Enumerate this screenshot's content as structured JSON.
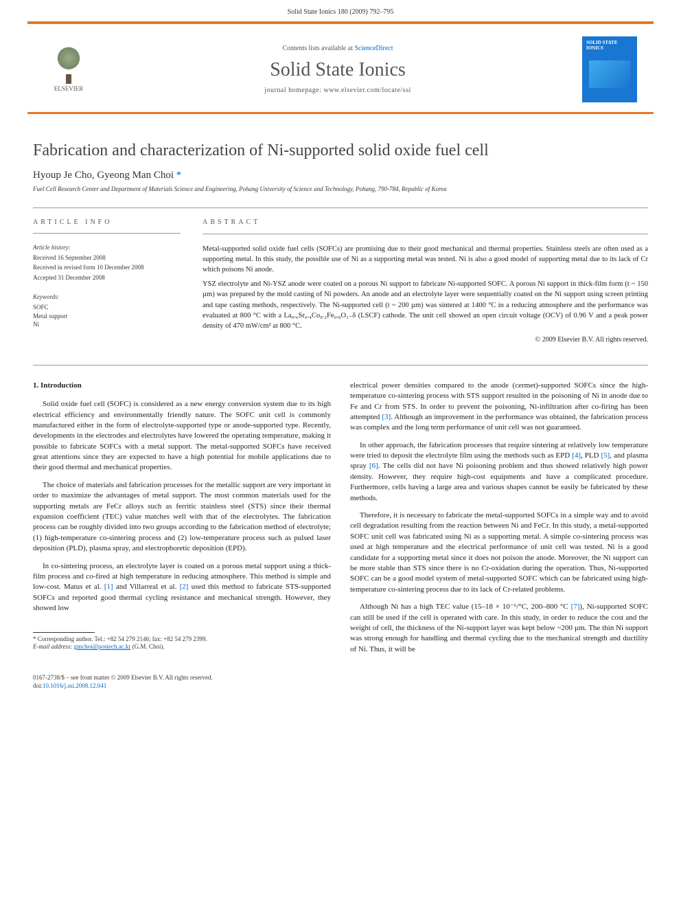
{
  "header": {
    "running": "Solid State Ionics 180 (2009) 792–795"
  },
  "banner": {
    "publisher": "ELSEVIER",
    "contents": "Contents lists available at ",
    "contents_link": "ScienceDirect",
    "journal": "Solid State Ionics",
    "homepage_label": "journal homepage: ",
    "homepage_url": "www.elsevier.com/locate/ssi",
    "cover_title": "SOLID STATE IONICS"
  },
  "article": {
    "title": "Fabrication and characterization of Ni-supported solid oxide fuel cell",
    "authors": "Hyoup Je Cho, Gyeong Man Choi ",
    "corr_mark": "*",
    "affiliation": "Fuel Cell Research Center and Department of Materials Science and Engineering, Pohang University of Science and Technology, Pohang, 790-784, Republic of Korea"
  },
  "info": {
    "heading": "ARTICLE INFO",
    "history_label": "Article history:",
    "received": "Received 16 September 2008",
    "revised": "Received in revised form 10 December 2008",
    "accepted": "Accepted 31 December 2008",
    "keywords_label": "Keywords:",
    "kw1": "SOFC",
    "kw2": "Metal support",
    "kw3": "Ni"
  },
  "abstract": {
    "heading": "ABSTRACT",
    "p1": "Metal-supported solid oxide fuel cells (SOFCs) are promising due to their good mechanical and thermal properties. Stainless steels are often used as a supporting metal. In this study, the possible use of Ni as a supporting metal was tested. Ni is also a good model of supporting metal due to its lack of Cr which poisons Ni anode.",
    "p2": "YSZ electrolyte and Ni-YSZ anode were coated on a porous Ni support to fabricate Ni-supported SOFC. A porous Ni support in thick-film form (t ~ 150 µm) was prepared by the mold casting of Ni powders. An anode and an electrolyte layer were sequentially coated on the Ni support using screen printing and tape casting methods, respectively. The Ni-supported cell (t ~ 200 µm) was sintered at 1400 °C in a reducing atmosphere and the performance was evaluated at 800 °C with a La₀.₆Sr₀.₄Co₀.₂Fe₀.₈O₃₋δ (LSCF) cathode. The unit cell showed an open circuit voltage (OCV) of 0.96 V and a peak power density of 470 mW/cm² at 800 °C.",
    "copyright": "© 2009 Elsevier B.V. All rights reserved."
  },
  "intro": {
    "heading": "1. Introduction",
    "left_p1": "Solid oxide fuel cell (SOFC) is considered as a new energy conversion system due to its high electrical efficiency and environmentally friendly nature. The SOFC unit cell is commonly manufactured either in the form of electrolyte-supported type or anode-supported type. Recently, developments in the electrodes and electrolytes have lowered the operating temperature, making it possible to fabricate SOFCs with a metal support. The metal-supported SOFCs have received great attentions since they are expected to have a high potential for mobile applications due to their good thermal and mechanical properties.",
    "left_p2": "The choice of materials and fabrication processes for the metallic support are very important in order to maximize the advantages of metal support. The most common materials used for the supporting metals are FeCr alloys such as ferritic stainless steel (STS) since their thermal expansion coefficient (TEC) value matches well with that of the electrolytes. The fabrication process can be roughly divided into two groups according to the fabrication method of electrolyte; (1) high-temperature co-sintering process and (2) low-temperature process such as pulsed laser deposition (PLD), plasma spray, and electrophoretic deposition (EPD).",
    "left_p3_a": "In co-sintering process, an electrolyte layer is coated on a porous metal support using a thick-film process and co-fired at high temperature in reducing atmosphere. This method is simple and low-cost. Matus et al. ",
    "left_p3_ref1": "[1]",
    "left_p3_b": " and Villarreal et al. ",
    "left_p3_ref2": "[2]",
    "left_p3_c": " used this method to fabricate STS-supported SOFCs and reported good thermal cycling resistance and mechanical strength. However, they showed low",
    "right_p1_a": "electrical power densities compared to the anode (cermet)-supported SOFCs since the high-temperature co-sintering process with STS support resulted in the poisoning of Ni in anode due to Fe and Cr from STS. In order to prevent the poisoning, Ni-infiltration after co-firing has been attempted ",
    "right_p1_ref3": "[3]",
    "right_p1_b": ". Although an improvement in the performance was obtained, the fabrication process was complex and the long term performance of unit cell was not guaranteed.",
    "right_p2_a": "In other approach, the fabrication processes that require sintering at relatively low temperature were tried to deposit the electrolyte film using the methods such as EPD ",
    "right_p2_ref4": "[4]",
    "right_p2_b": ", PLD ",
    "right_p2_ref5": "[5]",
    "right_p2_c": ", and plasma spray ",
    "right_p2_ref6": "[6]",
    "right_p2_d": ". The cells did not have Ni poisoning problem and thus showed relatively high power density. However, they require high-cost equipments and have a complicated procedure. Furthermore, cells having a large area and various shapes cannot be easily be fabricated by these methods.",
    "right_p3": "Therefore, it is necessary to fabricate the metal-supported SOFCs in a simple way and to avoid cell degradation resulting from the reaction between Ni and FeCr. In this study, a metal-supported SOFC unit cell was fabricated using Ni as a supporting metal. A simple co-sintering process was used at high temperature and the electrical performance of unit cell was tested. Ni is a good candidate for a supporting metal since it does not poison the anode. Moreover, the Ni support can be more stable than STS since there is no Cr-oxidation during the operation. Thus, Ni-supported SOFC can be a good model system of metal-supported SOFC which can be fabricated using high-temperature co-sintering process due to its lack of Cr-related problems.",
    "right_p4_a": "Although Ni has a high TEC value (15–18 × 10⁻⁶/°C, 200–800 °C ",
    "right_p4_ref7": "[7]",
    "right_p4_b": "), Ni-supported SOFC can still be used if the cell is operated with care. In this study, in order to reduce the cost and the weight of cell, the thickness of the Ni-support layer was kept below ~200 µm. The thin Ni support was strong enough for handling and thermal cycling due to the mechanical strength and ductility of Ni. Thus, it will be"
  },
  "footnote": {
    "corr_label": "* Corresponding author. Tel.: +82 54 279 2146; fax: +82 54 279 2399.",
    "email_label": "E-mail address: ",
    "email": "gmchoi@postech.ac.kr",
    "email_tail": " (G.M. Choi)."
  },
  "footer": {
    "issn": "0167-2738/$ – see front matter © 2009 Elsevier B.V. All rights reserved.",
    "doi_label": "doi:",
    "doi": "10.1016/j.ssi.2008.12.041"
  }
}
